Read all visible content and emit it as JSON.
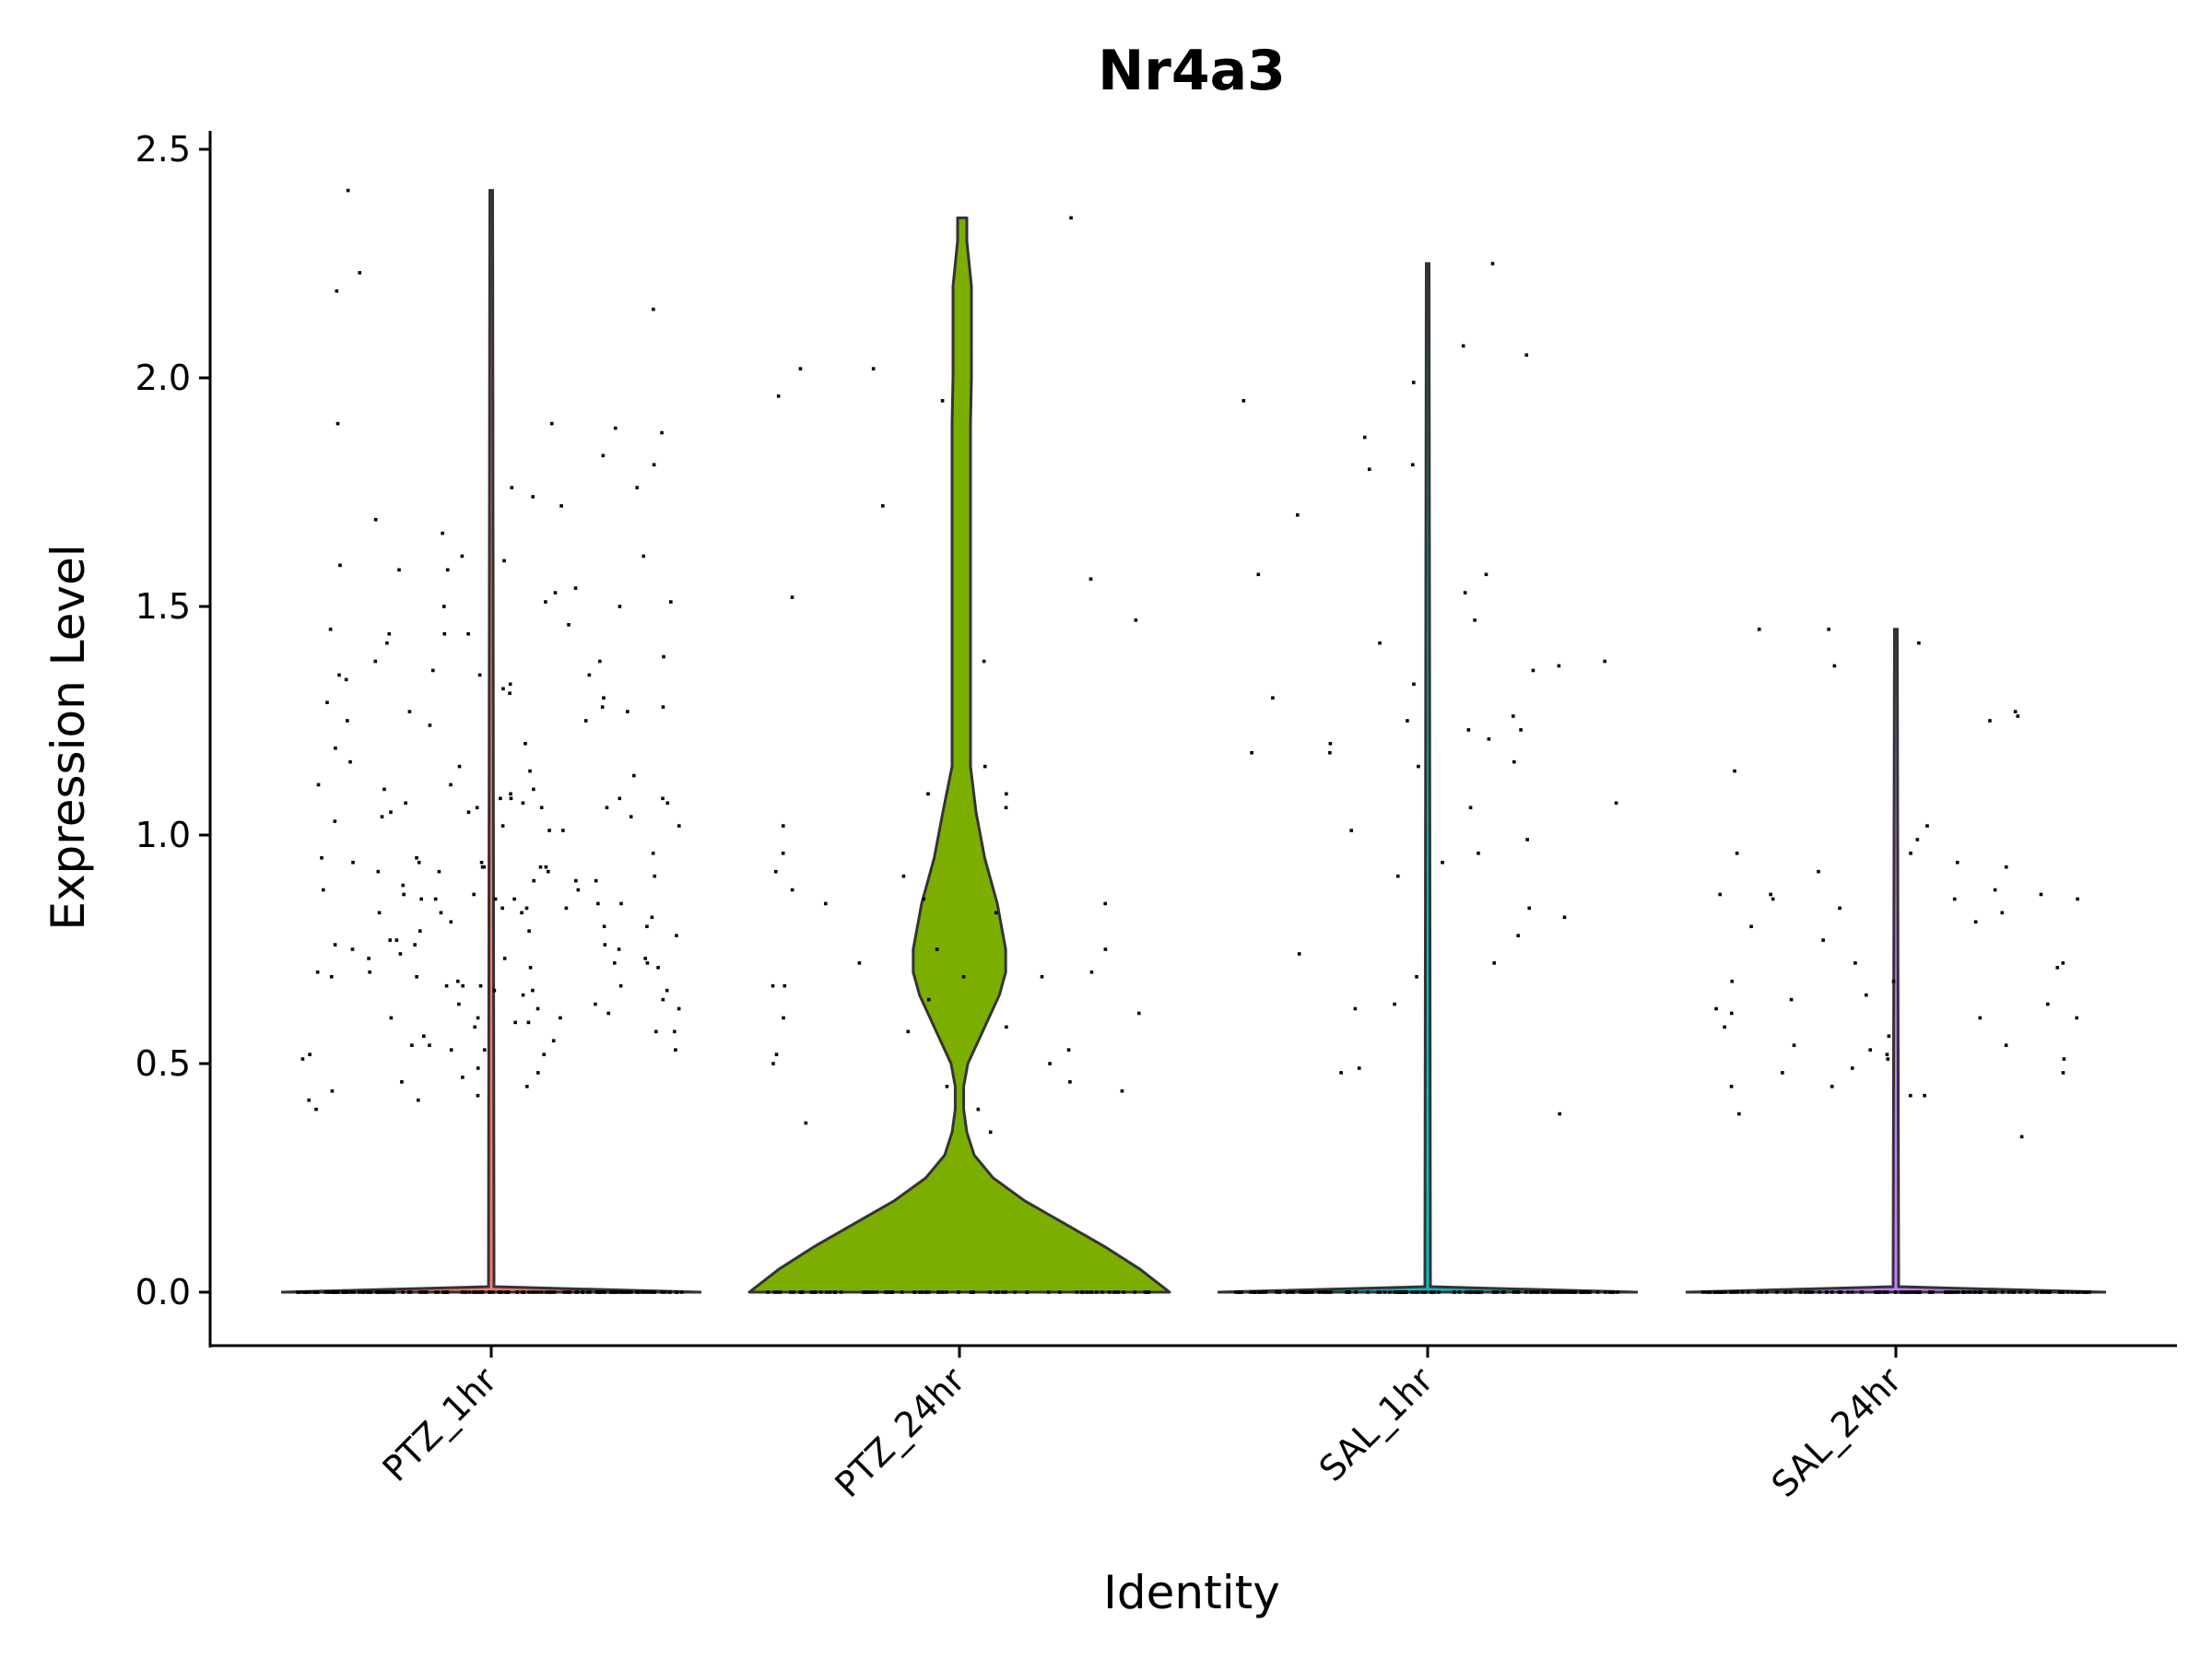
{
  "chart_data": {
    "type": "violin",
    "title": "Nr4a3",
    "xlabel": "Identity",
    "ylabel": "Expression Level",
    "ylim": [
      -0.12,
      2.53
    ],
    "yticks": [
      0.0,
      0.5,
      1.0,
      1.5,
      2.0,
      2.5
    ],
    "ytick_labels": [
      "0.0",
      "0.5",
      "1.0",
      "1.5",
      "2.0",
      "2.5"
    ],
    "grid": false,
    "legend": "none",
    "categories": [
      "PTZ_1hr",
      "PTZ_24hr",
      "SAL_1hr",
      "SAL_24hr"
    ],
    "colors": {
      "PTZ_1hr": "#F8766D",
      "PTZ_24hr": "#7CAE00",
      "SAL_1hr": "#00BFC4",
      "SAL_24hr": "#C77CFF",
      "outline": "#333333"
    },
    "groups": [
      {
        "name": "PTZ_1hr",
        "max": 2.41,
        "zero_count": 150,
        "density": [
          [
            0.0,
            1.0
          ],
          [
            0.05,
            0.004
          ],
          [
            2.41,
            0.0
          ]
        ],
        "points": [
          2.41,
          2.23,
          2.19,
          2.15,
          1.9,
          1.9,
          1.89,
          1.88,
          1.83,
          1.81,
          1.76,
          1.76,
          1.74,
          1.72,
          1.69,
          1.66,
          1.61,
          1.61,
          1.6,
          1.59,
          1.58,
          1.58,
          1.54,
          1.53,
          1.51,
          1.51,
          1.5,
          1.5,
          1.46,
          1.45,
          1.44,
          1.44,
          1.44,
          1.42,
          1.39,
          1.38,
          1.38,
          1.36,
          1.35,
          1.35,
          1.35,
          1.34,
          1.33,
          1.32,
          1.31,
          1.3,
          1.29,
          1.28,
          1.28,
          1.27,
          1.27,
          1.25,
          1.25,
          1.24,
          1.2,
          1.19,
          1.16,
          1.15,
          1.14,
          1.13,
          1.11,
          1.11,
          1.1,
          1.1,
          1.09,
          1.08,
          1.08,
          1.08,
          1.08,
          1.07,
          1.07,
          1.07,
          1.06,
          1.06,
          1.06,
          1.05,
          1.05,
          1.04,
          1.04,
          1.03,
          1.02,
          1.02,
          1.01,
          1.01,
          0.96,
          0.95,
          0.95,
          0.94,
          0.94,
          0.94,
          0.93,
          0.93,
          0.93,
          0.93,
          0.92,
          0.92,
          0.92,
          0.91,
          0.9,
          0.9,
          0.9,
          0.89,
          0.88,
          0.88,
          0.87,
          0.87,
          0.86,
          0.86,
          0.86,
          0.86,
          0.85,
          0.85,
          0.84,
          0.84,
          0.84,
          0.83,
          0.83,
          0.83,
          0.82,
          0.81,
          0.8,
          0.8,
          0.79,
          0.79,
          0.78,
          0.77,
          0.77,
          0.76,
          0.76,
          0.76,
          0.75,
          0.75,
          0.74,
          0.73,
          0.73,
          0.73,
          0.72,
          0.72,
          0.71,
          0.71,
          0.7,
          0.7,
          0.69,
          0.69,
          0.68,
          0.67,
          0.67,
          0.67,
          0.67,
          0.66,
          0.66,
          0.66,
          0.65,
          0.64,
          0.63,
          0.63,
          0.62,
          0.62,
          0.61,
          0.6,
          0.6,
          0.6,
          0.59,
          0.59,
          0.58,
          0.57,
          0.57,
          0.56,
          0.55,
          0.54,
          0.54,
          0.53,
          0.53,
          0.53,
          0.52,
          0.52,
          0.51,
          0.49,
          0.48,
          0.47,
          0.46,
          0.45,
          0.44,
          0.43,
          0.42,
          0.42,
          0.4
        ]
      },
      {
        "name": "PTZ_24hr",
        "max": 2.35,
        "zero_count": 80,
        "density": [
          [
            0.0,
            1.0
          ],
          [
            0.05,
            0.86
          ],
          [
            0.1,
            0.69
          ],
          [
            0.15,
            0.5
          ],
          [
            0.2,
            0.31
          ],
          [
            0.25,
            0.16
          ],
          [
            0.3,
            0.07
          ],
          [
            0.35,
            0.035
          ],
          [
            0.4,
            0.02
          ],
          [
            0.45,
            0.02
          ],
          [
            0.5,
            0.04
          ],
          [
            0.55,
            0.09
          ],
          [
            0.6,
            0.14
          ],
          [
            0.65,
            0.19
          ],
          [
            0.7,
            0.22
          ],
          [
            0.75,
            0.22
          ],
          [
            0.85,
            0.18
          ],
          [
            0.95,
            0.12
          ],
          [
            1.05,
            0.06
          ],
          [
            1.15,
            0.015
          ],
          [
            1.25,
            -0.035
          ],
          [
            1.35,
            -0.055
          ],
          [
            1.5,
            -0.06
          ],
          [
            1.65,
            -0.055
          ],
          [
            1.8,
            -0.045
          ],
          [
            1.9,
            -0.025
          ],
          [
            2.0,
            -0.01
          ],
          [
            2.1,
            -0.02
          ],
          [
            2.2,
            -0.025
          ],
          [
            2.3,
            -0.02
          ],
          [
            2.35,
            -0.015
          ]
        ],
        "points": [
          2.35,
          2.02,
          2.02,
          1.96,
          1.95,
          1.72,
          1.56,
          1.52,
          1.47,
          1.38,
          1.15,
          1.09,
          1.09,
          1.06,
          1.02,
          0.96,
          0.92,
          0.91,
          0.88,
          0.86,
          0.85,
          0.85,
          0.83,
          0.75,
          0.75,
          0.72,
          0.7,
          0.69,
          0.69,
          0.67,
          0.67,
          0.64,
          0.61,
          0.6,
          0.58,
          0.57,
          0.53,
          0.52,
          0.5,
          0.5,
          0.46,
          0.45,
          0.44,
          0.4,
          0.37,
          0.35
        ]
      },
      {
        "name": "SAL_1hr",
        "max": 2.25,
        "zero_count": 130,
        "density": [
          [
            0.0,
            1.0
          ],
          [
            0.05,
            0.004
          ],
          [
            2.25,
            0.0
          ]
        ],
        "points": [
          2.25,
          2.07,
          2.05,
          1.99,
          1.95,
          1.87,
          1.81,
          1.8,
          1.7,
          1.57,
          1.57,
          1.53,
          1.47,
          1.42,
          1.38,
          1.37,
          1.36,
          1.33,
          1.3,
          1.26,
          1.25,
          1.23,
          1.23,
          1.21,
          1.2,
          1.18,
          1.18,
          1.16,
          1.15,
          1.07,
          1.06,
          1.01,
          0.99,
          0.96,
          0.94,
          0.91,
          0.84,
          0.82,
          0.78,
          0.74,
          0.72,
          0.69,
          0.63,
          0.62,
          0.49,
          0.48,
          0.39
        ]
      },
      {
        "name": "SAL_24hr",
        "max": 1.45,
        "zero_count": 120,
        "density": [
          [
            0.0,
            1.0
          ],
          [
            0.05,
            0.004
          ],
          [
            1.45,
            0.0
          ]
        ],
        "points": [
          1.45,
          1.45,
          1.42,
          1.37,
          1.27,
          1.26,
          1.25,
          1.14,
          1.02,
          0.99,
          0.96,
          0.96,
          0.94,
          0.93,
          0.92,
          0.88,
          0.87,
          0.87,
          0.87,
          0.86,
          0.86,
          0.86,
          0.84,
          0.83,
          0.81,
          0.8,
          0.77,
          0.72,
          0.72,
          0.71,
          0.68,
          0.68,
          0.65,
          0.64,
          0.63,
          0.62,
          0.61,
          0.6,
          0.6,
          0.58,
          0.56,
          0.54,
          0.54,
          0.53,
          0.52,
          0.51,
          0.51,
          0.49,
          0.48,
          0.48,
          0.45,
          0.45,
          0.43,
          0.43,
          0.39,
          0.34
        ]
      }
    ]
  }
}
